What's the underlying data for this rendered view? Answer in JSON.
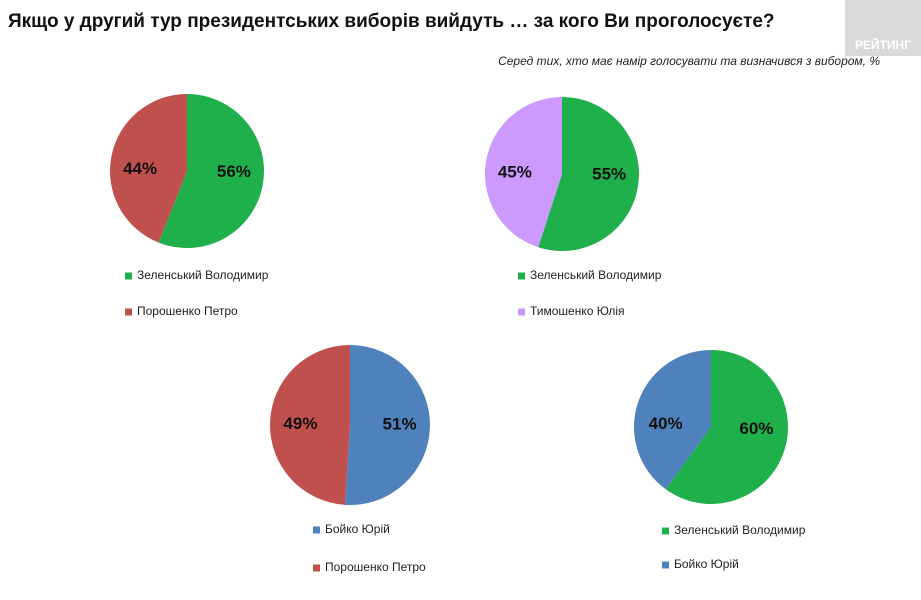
{
  "title": "Якщо у другий тур президентських виборів вийдуть … за кого Ви проголосуєте?",
  "subtitle": "Серед тих, хто має намір голосувати  та визначився з вибором, %",
  "logo": "РЕЙТИНГ",
  "chart_data": [
    {
      "type": "pie",
      "categories": [
        "Зеленський Володимир",
        "Порошенко Петро"
      ],
      "values": [
        56,
        44
      ],
      "value_labels": [
        "56%",
        "44%"
      ],
      "colors": [
        "#1fb04c",
        "#c0504d"
      ]
    },
    {
      "type": "pie",
      "categories": [
        "Зеленський Володимир",
        "Тимошенко Юлія"
      ],
      "values": [
        55,
        45
      ],
      "value_labels": [
        "55%",
        "45%"
      ],
      "colors": [
        "#1fb04c",
        "#cc99ff"
      ]
    },
    {
      "type": "pie",
      "categories": [
        "Бойко Юрій",
        "Порошенко Петро"
      ],
      "values": [
        51,
        49
      ],
      "value_labels": [
        "51%",
        "49%"
      ],
      "colors": [
        "#4f81bd",
        "#c0504d"
      ]
    },
    {
      "type": "pie",
      "categories": [
        "Зеленський Володимир",
        "Бойко Юрій"
      ],
      "values": [
        60,
        40
      ],
      "value_labels": [
        "60%",
        "40%"
      ],
      "colors": [
        "#1fb04c",
        "#4f81bd"
      ]
    }
  ]
}
